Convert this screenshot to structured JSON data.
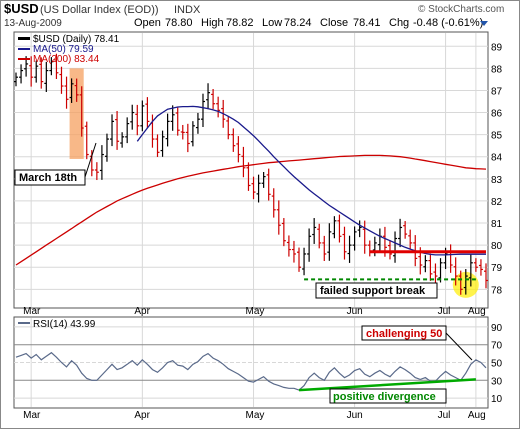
{
  "header": {
    "symbol": "$USD",
    "name": "(US Dollar Index (EOD))",
    "exchange": "INDX",
    "date": "13-Aug-2009",
    "open_label": "Open",
    "open": "78.80",
    "high_label": "High",
    "high": "78.82",
    "low_label": "Low",
    "low": "78.24",
    "close_label": "Close",
    "close": "78.41",
    "chg_label": "Chg",
    "chg": "-0.48 (-0.61%)",
    "watermark": "© StockCharts.com"
  },
  "legend": {
    "price": "$USD (Daily) 78.41",
    "ma50": "MA(50) 79.59",
    "ma200": "MA(200) 83.44",
    "rsi": "RSI(14) 43.99"
  },
  "annotations": {
    "march": "March 18th",
    "failed": "failed support break",
    "challenging": "challenging 50",
    "divergence": "positive divergence"
  },
  "colors": {
    "up": "#000000",
    "down": "#cc0000",
    "ma50": "#1a1a8c",
    "ma200": "#cc0000",
    "rsi": "#5a6a8a",
    "highlight": "#f5a060",
    "resistance": "#e00000",
    "support": "#008800",
    "circle": "#ffee00",
    "divergence": "#00aa00"
  },
  "chart_data": {
    "type": "ohlc",
    "x_axis_labels": [
      "Mar",
      "Apr",
      "May",
      "Jun",
      "Jul",
      "Aug"
    ],
    "price_axis": {
      "ticks": [
        78,
        79,
        80,
        81,
        82,
        83,
        84,
        85,
        86,
        87,
        88,
        89
      ],
      "ylim": [
        77.2,
        89.6
      ]
    },
    "rsi_axis": {
      "ticks": [
        10,
        30,
        50,
        70,
        90
      ],
      "ylim": [
        0,
        100
      ]
    },
    "series": [
      {
        "name": "$USD (Daily)",
        "close": [
          87.6,
          87.9,
          88.2,
          87.6,
          88.1,
          87.4,
          87.9,
          88.3,
          87.8,
          87.2,
          86.6,
          87.3,
          86.8,
          85.3,
          84.1,
          83.4,
          83.3,
          84.1,
          84.8,
          85.6,
          84.7,
          84.9,
          85.5,
          86.0,
          85.4,
          86.3,
          85.6,
          84.8,
          84.2,
          84.9,
          85.6,
          85.9,
          85.2,
          85.1,
          84.6,
          85.4,
          85.7,
          86.5,
          86.9,
          86.4,
          86.1,
          85.7,
          85.0,
          84.5,
          84.1,
          83.5,
          82.7,
          82.4,
          82.8,
          83.1,
          82.3,
          81.6,
          80.9,
          80.2,
          79.8,
          79.6,
          79.0,
          79.6,
          80.4,
          80.8,
          80.1,
          79.6,
          80.6,
          81.1,
          80.4,
          79.7,
          80.0,
          80.6,
          80.8,
          80.0,
          79.7,
          80.1,
          80.4,
          79.9,
          79.6,
          80.3,
          80.8,
          80.5,
          80.1,
          79.4,
          79.1,
          79.3,
          78.7,
          78.6,
          79.2,
          79.6,
          79.1,
          78.6,
          78.0,
          78.6,
          79.2,
          79.0,
          78.9,
          78.4
        ]
      },
      {
        "name": "MA(50)",
        "values": [
          null,
          null,
          null,
          null,
          null,
          null,
          null,
          null,
          null,
          null,
          null,
          null,
          null,
          null,
          null,
          null,
          null,
          null,
          null,
          null,
          null,
          null,
          null,
          null,
          84.7,
          85.0,
          85.3,
          85.6,
          85.85,
          86.0,
          86.15,
          86.2,
          86.25,
          86.27,
          86.27,
          86.28,
          86.26,
          86.22,
          86.18,
          86.12,
          86.05,
          85.95,
          85.83,
          85.7,
          85.55,
          85.35,
          85.15,
          84.95,
          84.72,
          84.48,
          84.25,
          84.0,
          83.77,
          83.55,
          83.32,
          83.1,
          82.9,
          82.7,
          82.5,
          82.32,
          82.15,
          81.97,
          81.8,
          81.65,
          81.5,
          81.35,
          81.2,
          81.05,
          80.9,
          80.78,
          80.65,
          80.52,
          80.4,
          80.3,
          80.2,
          80.1,
          80.0,
          79.9,
          79.82,
          79.75,
          79.68,
          79.62,
          79.58,
          79.56,
          79.56,
          79.56,
          79.57,
          79.58,
          79.59,
          79.59,
          79.59,
          79.59,
          79.59,
          79.59
        ]
      },
      {
        "name": "MA(200)",
        "values": [
          79.1,
          79.25,
          79.4,
          79.55,
          79.7,
          79.85,
          80.0,
          80.15,
          80.3,
          80.45,
          80.6,
          80.75,
          80.9,
          81.05,
          81.2,
          81.35,
          81.5,
          81.62,
          81.75,
          81.87,
          82.0,
          82.1,
          82.2,
          82.3,
          82.4,
          82.49,
          82.57,
          82.65,
          82.72,
          82.8,
          82.87,
          82.94,
          83.0,
          83.06,
          83.12,
          83.17,
          83.22,
          83.27,
          83.31,
          83.35,
          83.39,
          83.43,
          83.47,
          83.51,
          83.55,
          83.58,
          83.61,
          83.64,
          83.67,
          83.7,
          83.73,
          83.75,
          83.77,
          83.79,
          83.81,
          83.83,
          83.85,
          83.87,
          83.89,
          83.91,
          83.93,
          83.95,
          83.97,
          83.99,
          84.01,
          84.02,
          84.03,
          84.04,
          84.05,
          84.06,
          84.06,
          84.06,
          84.06,
          84.05,
          84.04,
          84.02,
          84.0,
          83.97,
          83.94,
          83.9,
          83.86,
          83.82,
          83.78,
          83.74,
          83.7,
          83.66,
          83.62,
          83.58,
          83.54,
          83.5,
          83.48,
          83.46,
          83.45,
          83.44
        ]
      },
      {
        "name": "RSI(14)",
        "values": [
          56,
          58,
          60,
          55,
          59,
          53,
          57,
          61,
          56,
          50,
          45,
          52,
          47,
          38,
          32,
          30,
          30,
          36,
          42,
          48,
          42,
          44,
          48,
          52,
          47,
          53,
          48,
          42,
          39,
          44,
          50,
          52,
          47,
          46,
          42,
          48,
          51,
          57,
          60,
          55,
          52,
          48,
          43,
          40,
          37,
          33,
          29,
          28,
          31,
          34,
          29,
          26,
          24,
          22,
          21,
          21,
          19,
          24,
          33,
          38,
          33,
          30,
          39,
          44,
          38,
          33,
          36,
          41,
          43,
          37,
          34,
          38,
          41,
          37,
          34,
          40,
          45,
          42,
          38,
          33,
          31,
          33,
          29,
          29,
          35,
          40,
          36,
          33,
          30,
          38,
          48,
          53,
          50,
          44
        ]
      }
    ]
  }
}
